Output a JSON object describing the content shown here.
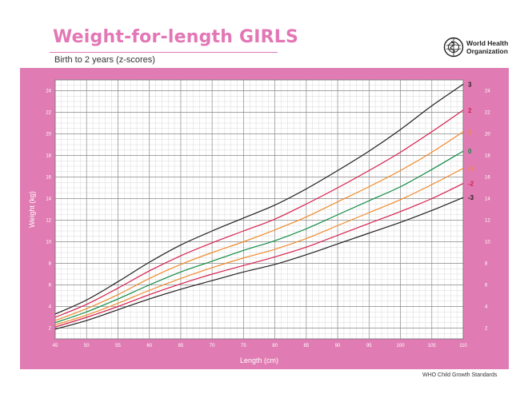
{
  "header": {
    "title": "Weight-for-length GIRLS",
    "subtitle": "Birth to 2 years (z-scores)",
    "org_line1": "World Health",
    "org_line2": "Organization"
  },
  "footer": {
    "source": "WHO Child Growth Standards"
  },
  "colors": {
    "panel": "#e07cb3",
    "z3": "#231f20",
    "z2": "#d6204f",
    "z1": "#f08a2b",
    "z0": "#0f8a43"
  },
  "chart_data": {
    "type": "line",
    "title": "Weight-for-length GIRLS",
    "subtitle": "Birth to 2 years (z-scores)",
    "xlabel": "Length (cm)",
    "ylabel": "Weight (kg)",
    "xlim": [
      45,
      110
    ],
    "ylim": [
      1,
      25
    ],
    "x_ticks": [
      45,
      50,
      55,
      60,
      65,
      70,
      75,
      80,
      85,
      90,
      95,
      100,
      105,
      110
    ],
    "y_ticks": [
      2,
      4,
      6,
      8,
      10,
      12,
      14,
      16,
      18,
      20,
      22,
      24
    ],
    "grid": true,
    "x": [
      45,
      50,
      55,
      60,
      65,
      70,
      75,
      80,
      85,
      90,
      95,
      100,
      105,
      110
    ],
    "series": [
      {
        "name": "3",
        "color": "#231f20",
        "values": [
          3.3,
          4.6,
          6.3,
          8.1,
          9.7,
          11.0,
          12.2,
          13.4,
          14.9,
          16.6,
          18.4,
          20.4,
          22.6,
          24.6
        ]
      },
      {
        "name": "2",
        "color": "#d6204f",
        "values": [
          3.0,
          4.2,
          5.7,
          7.3,
          8.7,
          9.9,
          11.0,
          12.1,
          13.5,
          15.0,
          16.6,
          18.3,
          20.2,
          22.2
        ]
      },
      {
        "name": "1",
        "color": "#f08a2b",
        "values": [
          2.7,
          3.8,
          5.1,
          6.6,
          7.9,
          9.0,
          10.0,
          11.1,
          12.3,
          13.7,
          15.1,
          16.6,
          18.3,
          20.2
        ]
      },
      {
        "name": "0",
        "color": "#0f8a43",
        "values": [
          2.5,
          3.5,
          4.7,
          6.0,
          7.2,
          8.2,
          9.2,
          10.1,
          11.2,
          12.5,
          13.8,
          15.1,
          16.7,
          18.4
        ]
      },
      {
        "name": "-1",
        "color": "#f08a2b",
        "values": [
          2.3,
          3.2,
          4.3,
          5.5,
          6.6,
          7.6,
          8.5,
          9.3,
          10.3,
          11.5,
          12.7,
          13.9,
          15.3,
          16.8
        ]
      },
      {
        "name": "-2",
        "color": "#d6204f",
        "values": [
          2.1,
          3.0,
          4.0,
          5.1,
          6.1,
          7.0,
          7.8,
          8.6,
          9.5,
          10.6,
          11.7,
          12.8,
          14.0,
          15.4
        ]
      },
      {
        "name": "-3",
        "color": "#231f20",
        "values": [
          1.9,
          2.7,
          3.7,
          4.7,
          5.6,
          6.4,
          7.2,
          7.9,
          8.8,
          9.8,
          10.8,
          11.8,
          12.9,
          14.1
        ]
      }
    ]
  }
}
